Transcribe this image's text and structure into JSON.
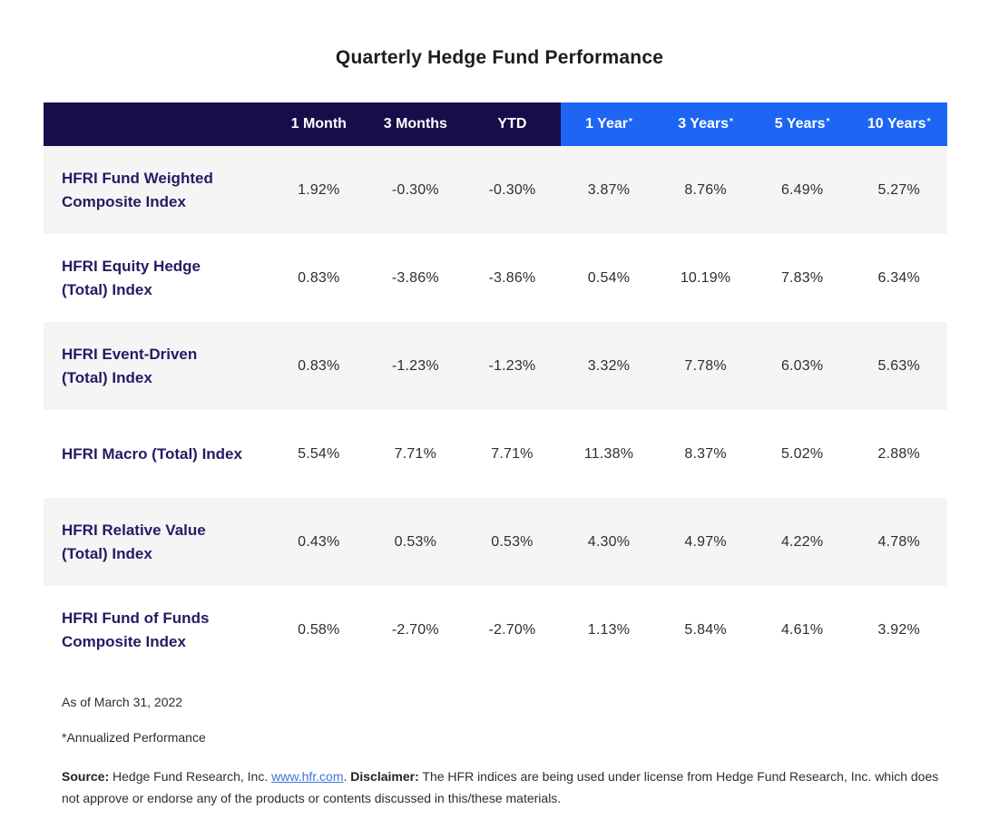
{
  "title": "Quarterly Hedge Fund Performance",
  "colors": {
    "header_dark_navy": "#150e4a",
    "header_blue": "#1d66f4",
    "row_alt_gray": "#f5f5f6",
    "row_label_text": "#231c64",
    "value_text": "#2e2e2e",
    "link_blue": "#3d74da"
  },
  "table": {
    "annualized_marker": "*",
    "columns": [
      {
        "label": "1 Month",
        "annualized": false,
        "group": "dark"
      },
      {
        "label": "3 Months",
        "annualized": false,
        "group": "dark"
      },
      {
        "label": "YTD",
        "annualized": false,
        "group": "dark"
      },
      {
        "label": "1 Year",
        "annualized": true,
        "group": "blue"
      },
      {
        "label": "3 Years",
        "annualized": true,
        "group": "blue"
      },
      {
        "label": "5 Years",
        "annualized": true,
        "group": "blue"
      },
      {
        "label": "10 Years",
        "annualized": true,
        "group": "blue"
      }
    ],
    "rows": [
      {
        "name_lines": [
          "HFRI Fund Weighted",
          "Composite Index"
        ],
        "display": [
          "1.92%",
          "-0.30%",
          "-0.30%",
          "3.87%",
          "8.76%",
          "6.49%",
          "5.27%"
        ]
      },
      {
        "name_lines": [
          "HFRI Equity Hedge",
          "(Total) Index"
        ],
        "display": [
          "0.83%",
          "-3.86%",
          "-3.86%",
          "0.54%",
          "10.19%",
          "7.83%",
          "6.34%"
        ]
      },
      {
        "name_lines": [
          "HFRI Event-Driven",
          "(Total) Index"
        ],
        "display": [
          "0.83%",
          "-1.23%",
          "-1.23%",
          "3.32%",
          "7.78%",
          "6.03%",
          "5.63%"
        ]
      },
      {
        "name_lines": [
          "HFRI Macro (Total) Index"
        ],
        "display": [
          "5.54%",
          "7.71%",
          "7.71%",
          "11.38%",
          "8.37%",
          "5.02%",
          "2.88%"
        ]
      },
      {
        "name_lines": [
          "HFRI Relative Value",
          "(Total) Index"
        ],
        "display": [
          "0.43%",
          "0.53%",
          "0.53%",
          "4.30%",
          "4.97%",
          "4.22%",
          "4.78%"
        ]
      },
      {
        "name_lines": [
          "HFRI Fund of Funds",
          "Composite Index"
        ],
        "display": [
          "0.58%",
          "-2.70%",
          "-2.70%",
          "1.13%",
          "5.84%",
          "4.61%",
          "3.92%"
        ]
      }
    ]
  },
  "chart_data": {
    "type": "table",
    "title": "Quarterly Hedge Fund Performance",
    "columns": [
      "1 Month",
      "3 Months",
      "YTD",
      "1 Year*",
      "3 Years*",
      "5 Years*",
      "10 Years*"
    ],
    "rows": [
      {
        "name": "HFRI Fund Weighted Composite Index",
        "values_pct": [
          1.92,
          -0.3,
          -0.3,
          3.87,
          8.76,
          6.49,
          5.27
        ]
      },
      {
        "name": "HFRI Equity Hedge (Total) Index",
        "values_pct": [
          0.83,
          -3.86,
          -3.86,
          0.54,
          10.19,
          7.83,
          6.34
        ]
      },
      {
        "name": "HFRI Event-Driven (Total) Index",
        "values_pct": [
          0.83,
          -1.23,
          -1.23,
          3.32,
          7.78,
          6.03,
          5.63
        ]
      },
      {
        "name": "HFRI Macro (Total) Index",
        "values_pct": [
          5.54,
          7.71,
          7.71,
          11.38,
          8.37,
          5.02,
          2.88
        ]
      },
      {
        "name": "HFRI Relative Value (Total) Index",
        "values_pct": [
          0.43,
          0.53,
          0.53,
          4.3,
          4.97,
          4.22,
          4.78
        ]
      },
      {
        "name": "HFRI Fund of Funds Composite Index",
        "values_pct": [
          0.58,
          -2.7,
          -2.7,
          1.13,
          5.84,
          4.61,
          3.92
        ]
      }
    ],
    "notes": [
      "As of March 31, 2022",
      "*Annualized Performance"
    ]
  },
  "footer": {
    "as_of": "As of March 31, 2022",
    "annualized_note": "*Annualized Performance",
    "source_label": "Source:",
    "source_text": " Hedge Fund Research, Inc. ",
    "link_text": "www.hfr.com",
    "after_link": ". ",
    "disclaimer_label": "Disclaimer:",
    "disclaimer_text": " The HFR indices are being used under license from Hedge Fund Research, Inc. which does not approve or endorse any of the products or contents discussed in this/these materials."
  }
}
